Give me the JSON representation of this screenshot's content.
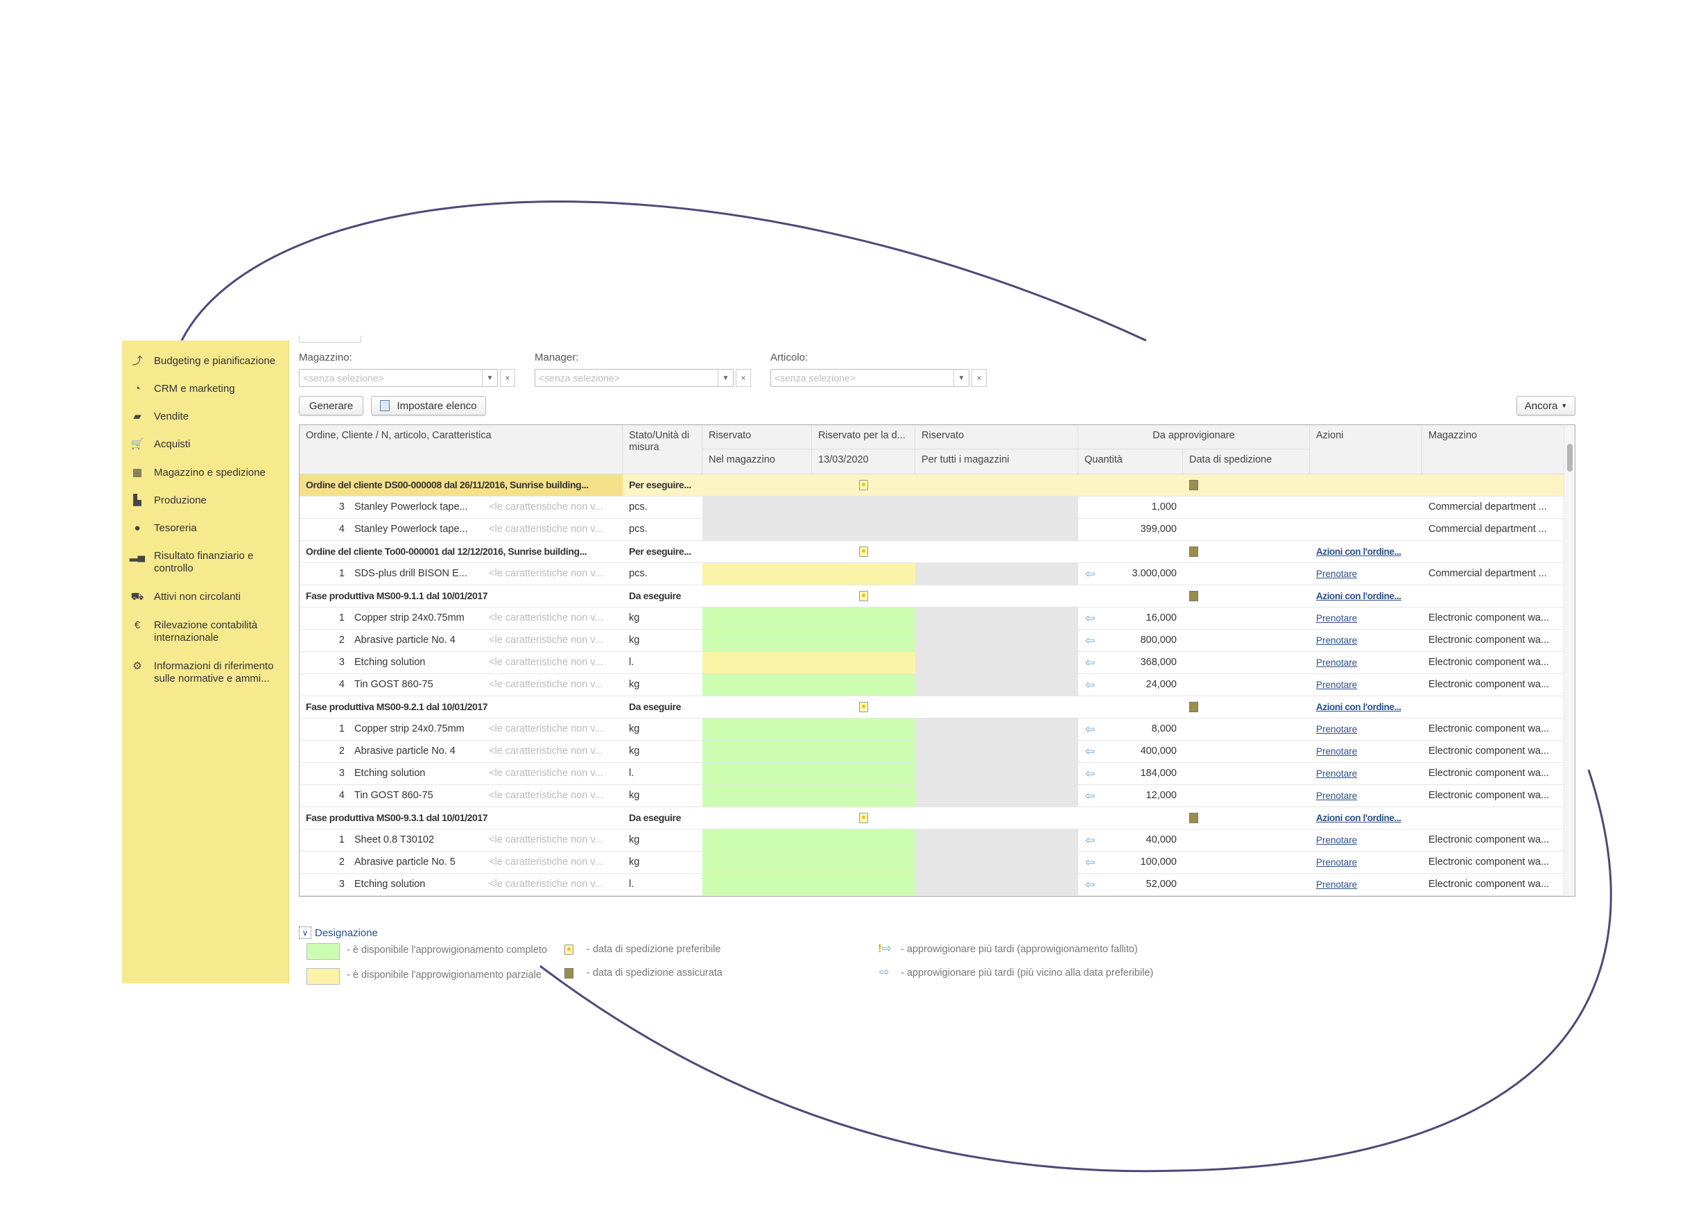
{
  "sidebar": {
    "items": [
      {
        "label": "Budgeting e pianificazione",
        "icon": "budget-icon"
      },
      {
        "label": "CRM e marketing",
        "icon": "pie-chart-icon"
      },
      {
        "label": "Vendite",
        "icon": "shopping-bag-icon"
      },
      {
        "label": "Acquisti",
        "icon": "cart-icon"
      },
      {
        "label": "Magazzino e spedizione",
        "icon": "warehouse-icon"
      },
      {
        "label": "Produzione",
        "icon": "factory-icon"
      },
      {
        "label": "Tesoreria",
        "icon": "coin-icon"
      },
      {
        "label": "Risultato finanziario e controllo",
        "icon": "bar-chart-icon"
      },
      {
        "label": "Attivi non circolanti",
        "icon": "truck-crane-icon"
      },
      {
        "label": "Rilevazione contabilità internazionale",
        "icon": "euro-icon"
      },
      {
        "label": "Informazioni di riferimento sulle normative e ammi...",
        "icon": "gear-icon"
      }
    ]
  },
  "filters": {
    "magazzino": {
      "label": "Magazzino:",
      "placeholder": "<senza selezione>"
    },
    "manager": {
      "label": "Manager:",
      "placeholder": "<senza selezione>"
    },
    "articolo": {
      "label": "Articolo:",
      "placeholder": "<senza selezione>"
    }
  },
  "toolbar": {
    "generate": "Generare",
    "set_list": "Impostare elenco",
    "more": "Ancora"
  },
  "table": {
    "headers": {
      "c1": "Ordine, Cliente / N, articolo, Caratteristica",
      "c2": "Stato/Unità di misura",
      "c3": "Riservato",
      "c3b": "Nel magazzino",
      "c4": "Riservato per la d...",
      "c4b": "13/03/2020",
      "c5": "Riservato",
      "c5b": "Per tutti i magazzini",
      "c67": "Da approvigionare",
      "c6b": "Quantità",
      "c7b": "Data di spedizione",
      "c8": "Azioni",
      "c9": "Magazzino"
    },
    "rows": [
      {
        "type": "group",
        "sel": true,
        "text": "Ordine del cliente DS00-000008 dal 26/11/2016, Sunrise building...",
        "status": "Per eseguire...",
        "action": ""
      },
      {
        "type": "item",
        "num": "3",
        "name": "Stanley Powerlock tape...",
        "char": "<le caratteristiche non v...",
        "unit": "pcs.",
        "fill": "gray",
        "qty": "1,000",
        "arrow": false,
        "action": "",
        "wh": "Commercial department ..."
      },
      {
        "type": "item",
        "num": "4",
        "name": "Stanley Powerlock tape...",
        "char": "<le caratteristiche non v...",
        "unit": "pcs.",
        "fill": "gray",
        "qty": "399,000",
        "arrow": false,
        "action": "",
        "wh": "Commercial department ..."
      },
      {
        "type": "group",
        "text": "Ordine del cliente To00-000001 dal 12/12/2016, Sunrise building...",
        "status": "Per eseguire...",
        "action": "Azioni con l'ordine..."
      },
      {
        "type": "item",
        "num": "1",
        "name": "SDS-plus drill BISON E...",
        "char": "<le caratteristiche non v...",
        "unit": "pcs.",
        "fill": "yellow",
        "qty": "3.000,000",
        "arrow": true,
        "action": "Prenotare",
        "wh": "Commercial department ..."
      },
      {
        "type": "group",
        "text": "Fase produttiva MS00-9.1.1 dal 10/01/2017",
        "status": "Da eseguire",
        "action": "Azioni con l'ordine..."
      },
      {
        "type": "item",
        "num": "1",
        "name": "Copper strip 24x0.75mm",
        "char": "<le caratteristiche non v...",
        "unit": "kg",
        "fill": "green",
        "qty": "16,000",
        "arrow": true,
        "action": "Prenotare",
        "wh": "Electronic component wa..."
      },
      {
        "type": "item",
        "num": "2",
        "name": "Abrasive particle No. 4",
        "char": "<le caratteristiche non v...",
        "unit": "kg",
        "fill": "green",
        "qty": "800,000",
        "arrow": true,
        "action": "Prenotare",
        "wh": "Electronic component wa..."
      },
      {
        "type": "item",
        "num": "3",
        "name": "Etching solution",
        "char": "<le caratteristiche non v...",
        "unit": "l.",
        "fill": "yellow",
        "qty": "368,000",
        "arrow": true,
        "action": "Prenotare",
        "wh": "Electronic component wa..."
      },
      {
        "type": "item",
        "num": "4",
        "name": "Tin GOST 860-75",
        "char": "<le caratteristiche non v...",
        "unit": "kg",
        "fill": "green",
        "qty": "24,000",
        "arrow": true,
        "action": "Prenotare",
        "wh": "Electronic component wa..."
      },
      {
        "type": "group",
        "text": "Fase produttiva MS00-9.2.1 dal 10/01/2017",
        "status": "Da eseguire",
        "action": "Azioni con l'ordine..."
      },
      {
        "type": "item",
        "num": "1",
        "name": "Copper strip 24x0.75mm",
        "char": "<le caratteristiche non v...",
        "unit": "kg",
        "fill": "green",
        "qty": "8,000",
        "arrow": true,
        "action": "Prenotare",
        "wh": "Electronic component wa..."
      },
      {
        "type": "item",
        "num": "2",
        "name": "Abrasive particle No. 4",
        "char": "<le caratteristiche non v...",
        "unit": "kg",
        "fill": "green",
        "qty": "400,000",
        "arrow": true,
        "action": "Prenotare",
        "wh": "Electronic component wa..."
      },
      {
        "type": "item",
        "num": "3",
        "name": "Etching solution",
        "char": "<le caratteristiche non v...",
        "unit": "l.",
        "fill": "green",
        "qty": "184,000",
        "arrow": true,
        "action": "Prenotare",
        "wh": "Electronic component wa..."
      },
      {
        "type": "item",
        "num": "4",
        "name": "Tin GOST 860-75",
        "char": "<le caratteristiche non v...",
        "unit": "kg",
        "fill": "green",
        "qty": "12,000",
        "arrow": true,
        "action": "Prenotare",
        "wh": "Electronic component wa..."
      },
      {
        "type": "group",
        "text": "Fase produttiva MS00-9.3.1 dal 10/01/2017",
        "status": "Da eseguire",
        "action": "Azioni con l'ordine..."
      },
      {
        "type": "item",
        "num": "1",
        "name": "Sheet 0.8 T30102",
        "char": "<le caratteristiche non v...",
        "unit": "kg",
        "fill": "green",
        "qty": "40,000",
        "arrow": true,
        "action": "Prenotare",
        "wh": "Electronic component wa..."
      },
      {
        "type": "item",
        "num": "2",
        "name": "Abrasive particle No. 5",
        "char": "<le caratteristiche non v...",
        "unit": "kg",
        "fill": "green",
        "qty": "100,000",
        "arrow": true,
        "action": "Prenotare",
        "wh": "Electronic component wa..."
      },
      {
        "type": "item",
        "num": "3",
        "name": "Etching solution",
        "char": "<le caratteristiche non v...",
        "unit": "l.",
        "fill": "green",
        "qty": "52,000",
        "arrow": true,
        "action": "Prenotare",
        "wh": "Electronic component wa..."
      }
    ]
  },
  "legend": {
    "title": "Designazione",
    "full": "- è disponibile l'approwigionamento completo",
    "partial": "- è disponibile l'approwigionamento parziale",
    "preferred": "- data di spedizione preferibile",
    "assured": "- data di spedizione assicurata",
    "failed": "- approwigionare più tardi (approwigionamento fallito)",
    "closer": "- approwigionare più tardi (più vicino alla data preferibile)"
  },
  "colors": {
    "sidebar": "#f7e98e",
    "green": "#ccfdb0",
    "yellow": "#fbf3a8",
    "gray": "#e6e6e6",
    "link": "#2a4f8a",
    "curve": "#4b4a78"
  }
}
